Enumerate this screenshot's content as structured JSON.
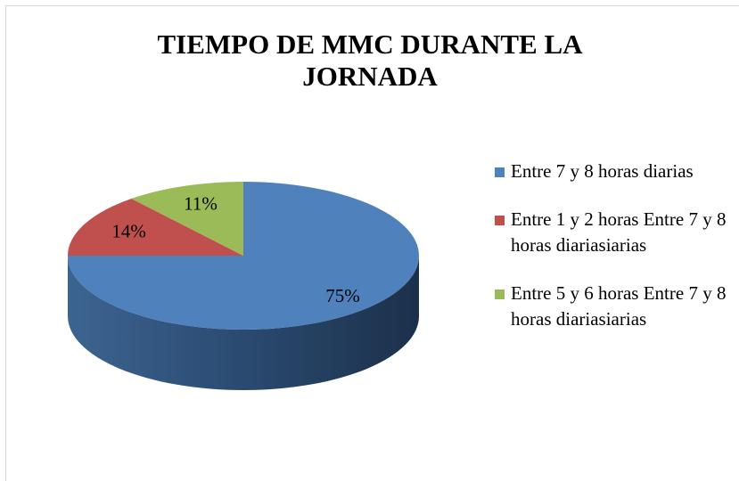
{
  "chart_data": {
    "type": "pie",
    "title": "TIEMPO DE MMC DURANTE LA JORNADA",
    "categories": [
      "Entre 7 y 8 horas diarias",
      "Entre 1 y 2 horas Entre 7 y 8 horas diariasiarias",
      "Entre 5 y 6 horas Entre 7 y 8 horas diariasiarias"
    ],
    "values": [
      75,
      14,
      11
    ],
    "value_labels": [
      "75%",
      "14%",
      "11%"
    ],
    "colors": [
      "#4f81bd",
      "#c0504d",
      "#9bbb59"
    ],
    "legend": "right"
  }
}
